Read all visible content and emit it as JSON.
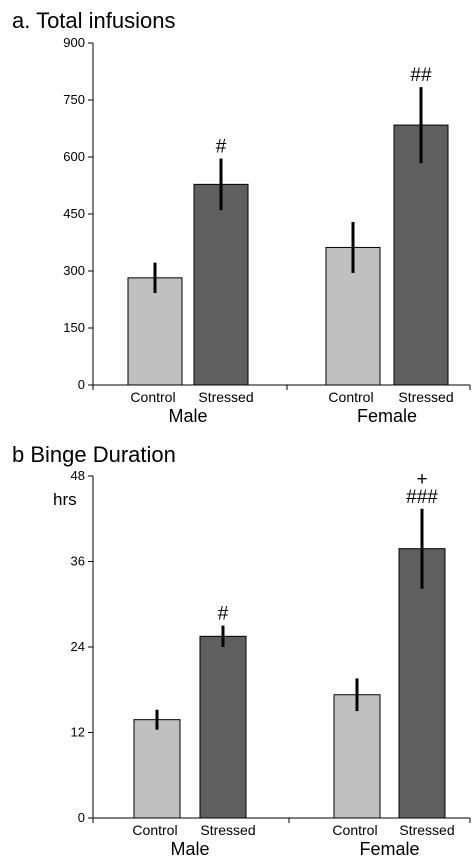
{
  "colors": {
    "control": "#c0c0c0",
    "stressed": "#5f5f5f",
    "axis": "#000000"
  },
  "chart_data": [
    {
      "type": "bar",
      "title": "a. Total infusions",
      "ylabel": "",
      "ylim": [
        0,
        900
      ],
      "yticks": [
        0,
        150,
        300,
        450,
        600,
        750,
        900
      ],
      "groups": [
        "Male",
        "Female"
      ],
      "categories": [
        "Control",
        "Stressed"
      ],
      "bars": [
        {
          "group": "Male",
          "category": "Control",
          "value": 282,
          "error": 40,
          "annotation": ""
        },
        {
          "group": "Male",
          "category": "Stressed",
          "value": 528,
          "error": 68,
          "annotation": "#"
        },
        {
          "group": "Female",
          "category": "Control",
          "value": 362,
          "error": 67,
          "annotation": ""
        },
        {
          "group": "Female",
          "category": "Stressed",
          "value": 684,
          "error": 100,
          "annotation": "##"
        }
      ]
    },
    {
      "type": "bar",
      "title": "b Binge Duration",
      "ylabel": "hrs",
      "ylim": [
        0,
        48
      ],
      "yticks": [
        0,
        12,
        24,
        36,
        48
      ],
      "groups": [
        "Male",
        "Female"
      ],
      "categories": [
        "Control",
        "Stressed"
      ],
      "bars": [
        {
          "group": "Male",
          "category": "Control",
          "value": 13.8,
          "error": 1.4,
          "annotation": ""
        },
        {
          "group": "Male",
          "category": "Stressed",
          "value": 25.5,
          "error": 1.5,
          "annotation": "#"
        },
        {
          "group": "Female",
          "category": "Control",
          "value": 17.3,
          "error": 2.3,
          "annotation": ""
        },
        {
          "group": "Female",
          "category": "Stressed",
          "value": 37.8,
          "error": 5.6,
          "annotation": "###",
          "annotation_top": "+"
        }
      ]
    }
  ]
}
